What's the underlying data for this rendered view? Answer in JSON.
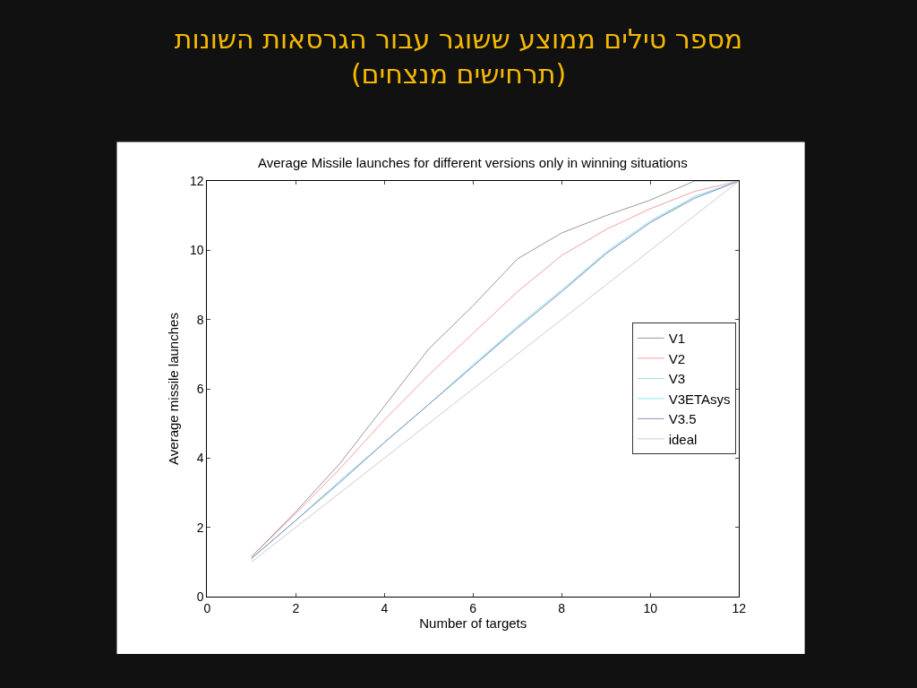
{
  "chart_data": {
    "type": "line",
    "title": "מספר טילים ממוצע ששוגר עבור הגרסאות השונות\n(תרחישים מנצחים)",
    "subtitle": "Average Missile launches for different versions only in winning situations",
    "xlabel": "Number of targets",
    "ylabel": "Average missile launches",
    "x": [
      1,
      2,
      3,
      4,
      5,
      6,
      7,
      8,
      9,
      10,
      11,
      12
    ],
    "series": [
      {
        "name": "V1",
        "color": "#999999",
        "values": [
          1.15,
          2.45,
          3.85,
          5.5,
          7.15,
          8.4,
          9.75,
          10.5,
          11.0,
          11.45,
          12.0,
          12.0
        ]
      },
      {
        "name": "V2",
        "color": "#f4a0a0",
        "values": [
          1.15,
          2.4,
          3.7,
          5.1,
          6.4,
          7.6,
          8.8,
          9.85,
          10.6,
          11.2,
          11.7,
          12.0
        ]
      },
      {
        "name": "V3",
        "color": "#a0e6c0",
        "values": [
          1.1,
          2.2,
          3.35,
          4.45,
          5.55,
          6.65,
          7.8,
          8.85,
          9.9,
          10.8,
          11.55,
          12.0
        ]
      },
      {
        "name": "V3ETAsys",
        "color": "#90e4f0",
        "values": [
          1.1,
          2.2,
          3.35,
          4.45,
          5.55,
          6.7,
          7.8,
          8.85,
          9.95,
          10.85,
          11.55,
          12.0
        ]
      },
      {
        "name": "V3.5",
        "color": "#9090c0",
        "values": [
          1.1,
          2.2,
          3.3,
          4.45,
          5.55,
          6.65,
          7.75,
          8.8,
          9.9,
          10.8,
          11.5,
          12.0
        ]
      },
      {
        "name": "ideal",
        "color": "#cccccc",
        "values": [
          1,
          2,
          3,
          4,
          5,
          6,
          7,
          8,
          9,
          10,
          11,
          12
        ]
      }
    ],
    "xlim": [
      0,
      12
    ],
    "xticks": [
      0,
      2,
      4,
      6,
      8,
      10,
      12
    ],
    "ylim": [
      0,
      12
    ],
    "yticks": [
      0,
      2,
      4,
      6,
      8,
      10,
      12
    ],
    "legend": "right",
    "marker": "none",
    "line_style": "solid"
  }
}
